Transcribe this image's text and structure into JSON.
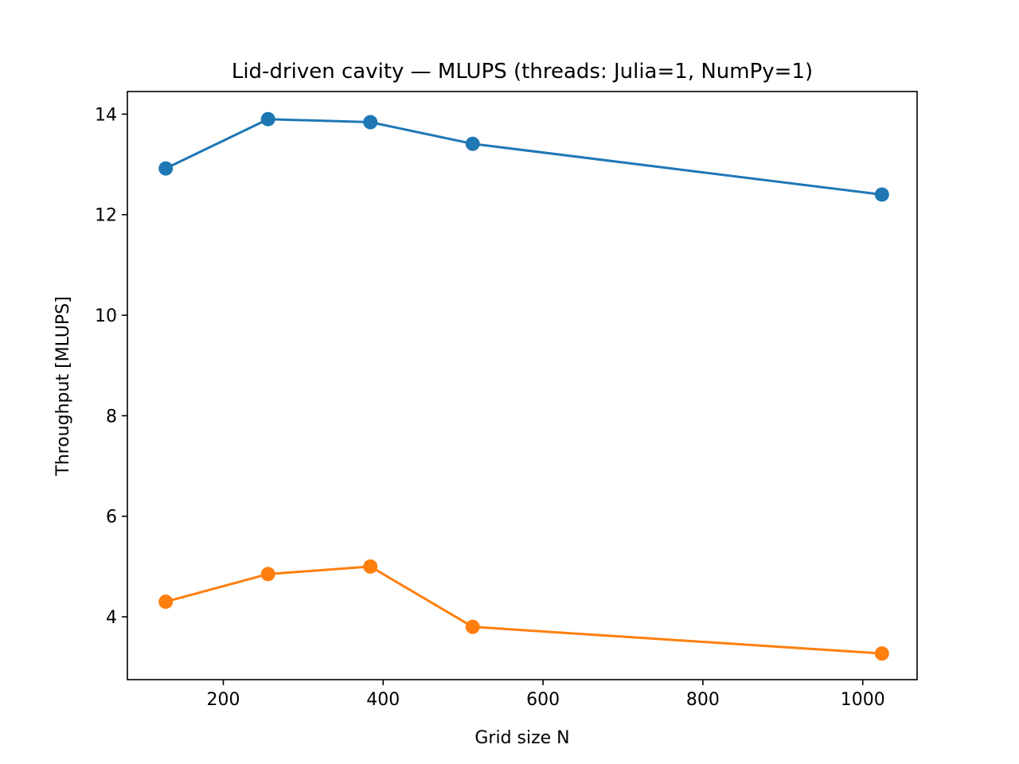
{
  "chart_data": {
    "type": "line",
    "title": "Lid-driven cavity — MLUPS (threads: Julia=1, NumPy=1)",
    "xlabel": "Grid size N",
    "ylabel": "Throughput [MLUPS]",
    "xlim": [
      80,
      1068
    ],
    "ylim": [
      2.75,
      14.45
    ],
    "xticks": [
      200,
      400,
      600,
      800,
      1000
    ],
    "yticks": [
      4,
      6,
      8,
      10,
      12,
      14
    ],
    "grid": false,
    "x": [
      128,
      256,
      384,
      512,
      1024
    ],
    "series": [
      {
        "color": "#1f77b4",
        "marker": "circle",
        "values": [
          12.92,
          13.9,
          13.84,
          13.41,
          12.4
        ]
      },
      {
        "color": "#ff7f0e",
        "marker": "circle",
        "values": [
          4.3,
          4.85,
          5.0,
          3.8,
          3.27
        ]
      }
    ]
  }
}
